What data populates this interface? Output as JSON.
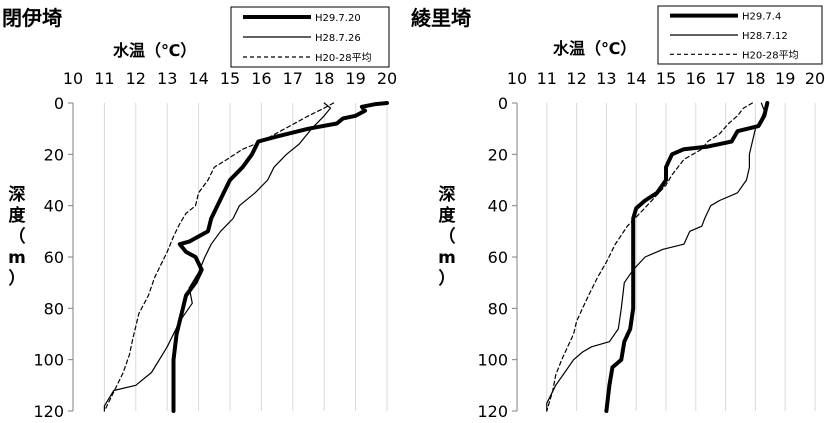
{
  "chart_data": [
    {
      "type": "line",
      "title": "閉伊埼",
      "xlabel": "水温（℃）",
      "ylabel": "深度（m）",
      "xlim": [
        10,
        20
      ],
      "ylim": [
        0,
        120
      ],
      "y_inverted": true,
      "x_ticks": [
        "10",
        "11",
        "12",
        "13",
        "14",
        "15",
        "16",
        "17",
        "18",
        "19",
        "20"
      ],
      "y_ticks": [
        "0",
        "20",
        "40",
        "60",
        "80",
        "100",
        "120"
      ],
      "x_axis_position": "top",
      "grid": {
        "vertical": true,
        "horizontal": false
      },
      "legend_position": "top-right",
      "series": [
        {
          "name": "H29.7.20",
          "style": "thick-solid",
          "points": [
            [
              20.0,
              0
            ],
            [
              19.6,
              0.5
            ],
            [
              19.2,
              1.5
            ],
            [
              19.3,
              3
            ],
            [
              19.0,
              5
            ],
            [
              18.6,
              6
            ],
            [
              18.4,
              8
            ],
            [
              17.5,
              10
            ],
            [
              16.5,
              13
            ],
            [
              15.9,
              15
            ],
            [
              15.7,
              20
            ],
            [
              15.4,
              25
            ],
            [
              15.0,
              30
            ],
            [
              14.8,
              35
            ],
            [
              14.6,
              40
            ],
            [
              14.4,
              45
            ],
            [
              14.3,
              50
            ],
            [
              13.7,
              54
            ],
            [
              13.4,
              55
            ],
            [
              13.6,
              58
            ],
            [
              13.9,
              60
            ],
            [
              14.1,
              65
            ],
            [
              13.9,
              70
            ],
            [
              13.6,
              75
            ],
            [
              13.5,
              80
            ],
            [
              13.3,
              90
            ],
            [
              13.2,
              100
            ],
            [
              13.2,
              110
            ],
            [
              13.2,
              120
            ]
          ]
        },
        {
          "name": "H28.7.26",
          "style": "thin-solid",
          "points": [
            [
              18.0,
              0
            ],
            [
              18.2,
              2
            ],
            [
              18.0,
              5
            ],
            [
              17.6,
              10
            ],
            [
              17.4,
              13
            ],
            [
              17.2,
              16
            ],
            [
              16.8,
              20
            ],
            [
              16.4,
              25
            ],
            [
              16.2,
              30
            ],
            [
              15.8,
              35
            ],
            [
              15.3,
              40
            ],
            [
              15.1,
              45
            ],
            [
              14.7,
              50
            ],
            [
              14.4,
              55
            ],
            [
              14.2,
              60
            ],
            [
              14.0,
              66
            ],
            [
              13.7,
              72
            ],
            [
              13.8,
              78
            ],
            [
              13.4,
              85
            ],
            [
              13.0,
              95
            ],
            [
              12.5,
              105
            ],
            [
              12.0,
              110
            ],
            [
              11.3,
              112
            ],
            [
              11.0,
              118
            ],
            [
              11.0,
              120
            ]
          ]
        },
        {
          "name": "H20-28平均",
          "style": "dashed",
          "points": [
            [
              18.3,
              0
            ],
            [
              18.0,
              2
            ],
            [
              17.5,
              5
            ],
            [
              16.9,
              9
            ],
            [
              16.3,
              13
            ],
            [
              15.8,
              16
            ],
            [
              15.4,
              18
            ],
            [
              14.9,
              22
            ],
            [
              14.5,
              25
            ],
            [
              14.3,
              30
            ],
            [
              14.0,
              35
            ],
            [
              13.9,
              40
            ],
            [
              13.6,
              43
            ],
            [
              13.4,
              47
            ],
            [
              13.2,
              52
            ],
            [
              13.0,
              58
            ],
            [
              12.8,
              63
            ],
            [
              12.6,
              68
            ],
            [
              12.4,
              75
            ],
            [
              12.1,
              82
            ],
            [
              11.9,
              92
            ],
            [
              11.8,
              98
            ],
            [
              11.6,
              105
            ],
            [
              11.4,
              110
            ],
            [
              11.2,
              115
            ],
            [
              11.0,
              120
            ]
          ]
        }
      ]
    },
    {
      "type": "line",
      "title": "綾里埼",
      "xlabel": "水温（℃）",
      "ylabel": "深度（m）",
      "xlim": [
        10,
        20
      ],
      "ylim": [
        0,
        120
      ],
      "y_inverted": true,
      "x_ticks": [
        "10",
        "11",
        "12",
        "13",
        "14",
        "15",
        "16",
        "17",
        "18",
        "19",
        "20"
      ],
      "y_ticks": [
        "0",
        "20",
        "40",
        "60",
        "80",
        "100",
        "120"
      ],
      "x_axis_position": "top",
      "grid": {
        "vertical": true,
        "horizontal": false
      },
      "legend_position": "top-right",
      "series": [
        {
          "name": "H29.7.4",
          "style": "thick-solid",
          "points": [
            [
              18.4,
              0
            ],
            [
              18.3,
              5
            ],
            [
              18.1,
              9
            ],
            [
              17.4,
              11
            ],
            [
              17.2,
              15
            ],
            [
              16.8,
              16
            ],
            [
              16.4,
              17
            ],
            [
              15.6,
              18
            ],
            [
              15.2,
              20
            ],
            [
              15.0,
              25
            ],
            [
              15.0,
              30
            ],
            [
              14.7,
              35
            ],
            [
              14.3,
              38
            ],
            [
              14.0,
              41
            ],
            [
              13.9,
              45
            ],
            [
              13.9,
              50
            ],
            [
              13.9,
              60
            ],
            [
              13.9,
              70
            ],
            [
              13.9,
              80
            ],
            [
              13.8,
              88
            ],
            [
              13.6,
              93
            ],
            [
              13.5,
              100
            ],
            [
              13.2,
              103
            ],
            [
              13.1,
              110
            ],
            [
              13.0,
              120
            ]
          ]
        },
        {
          "name": "H28.7.12",
          "style": "thin-solid",
          "points": [
            [
              18.2,
              0
            ],
            [
              18.3,
              3
            ],
            [
              18.2,
              6
            ],
            [
              18.0,
              10
            ],
            [
              17.9,
              15
            ],
            [
              17.8,
              20
            ],
            [
              17.8,
              25
            ],
            [
              17.7,
              30
            ],
            [
              17.4,
              35
            ],
            [
              16.8,
              38
            ],
            [
              16.5,
              40
            ],
            [
              16.3,
              45
            ],
            [
              16.2,
              48
            ],
            [
              15.8,
              50
            ],
            [
              15.6,
              55
            ],
            [
              14.9,
              57
            ],
            [
              14.3,
              60
            ],
            [
              13.9,
              65
            ],
            [
              13.6,
              70
            ],
            [
              13.5,
              80
            ],
            [
              13.4,
              88
            ],
            [
              13.1,
              93
            ],
            [
              12.5,
              95
            ],
            [
              12.2,
              97
            ],
            [
              11.9,
              100
            ],
            [
              11.6,
              105
            ],
            [
              11.3,
              110
            ],
            [
              11.0,
              117
            ],
            [
              11.0,
              120
            ]
          ]
        },
        {
          "name": "H20-28平均",
          "style": "dashed",
          "points": [
            [
              17.9,
              0
            ],
            [
              17.6,
              2
            ],
            [
              17.4,
              5
            ],
            [
              17.1,
              8
            ],
            [
              16.8,
              12
            ],
            [
              16.4,
              15
            ],
            [
              16.2,
              18
            ],
            [
              15.9,
              20
            ],
            [
              15.6,
              22
            ],
            [
              15.4,
              25
            ],
            [
              15.2,
              28
            ],
            [
              15.0,
              32
            ],
            [
              14.6,
              37
            ],
            [
              14.2,
              42
            ],
            [
              13.7,
              48
            ],
            [
              13.3,
              55
            ],
            [
              13.0,
              62
            ],
            [
              12.7,
              68
            ],
            [
              12.4,
              75
            ],
            [
              12.2,
              80
            ],
            [
              12.0,
              85
            ],
            [
              11.9,
              90
            ],
            [
              11.7,
              95
            ],
            [
              11.5,
              100
            ],
            [
              11.3,
              106
            ],
            [
              11.2,
              112
            ],
            [
              11.0,
              120
            ]
          ]
        }
      ]
    }
  ]
}
